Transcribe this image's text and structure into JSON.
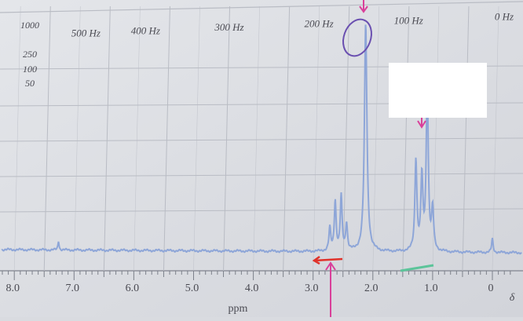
{
  "chart_data": {
    "type": "line",
    "title": "",
    "xlabel": "ppm",
    "ylabel": "",
    "x_axis": {
      "reversed": true,
      "range_ppm": [
        8.4,
        -0.3
      ],
      "ppm_ticks": [
        {
          "value": 8.0,
          "label": "8.0"
        },
        {
          "value": 7.0,
          "label": "7.0"
        },
        {
          "value": 6.0,
          "label": "6.0"
        },
        {
          "value": 5.0,
          "label": "5.0"
        },
        {
          "value": 4.0,
          "label": "4.0"
        },
        {
          "value": 3.0,
          "label": "3.0"
        },
        {
          "value": 2.0,
          "label": "2.0"
        },
        {
          "value": 1.0,
          "label": "1.0"
        },
        {
          "value": 0.0,
          "label": "0"
        }
      ],
      "delta_label": "δ",
      "hz_ticks": [
        {
          "ppm": 7.0,
          "label": "500 Hz"
        },
        {
          "ppm": 6.0,
          "label": "400 Hz"
        },
        {
          "ppm": 4.6,
          "label": "300 Hz"
        },
        {
          "ppm": 3.1,
          "label": "200 Hz"
        },
        {
          "ppm": 1.6,
          "label": "100 Hz"
        },
        {
          "ppm": 0.0,
          "label": "0 Hz"
        }
      ]
    },
    "sweep_widths": [
      "1000",
      "250",
      "100",
      "50"
    ],
    "grid": true,
    "baseline_intensity": 0.03,
    "peaks": [
      {
        "ppm": 7.26,
        "height": 0.04,
        "width": 0.012
      },
      {
        "ppm": 2.72,
        "height": 0.1,
        "width": 0.018
      },
      {
        "ppm": 2.63,
        "height": 0.22,
        "width": 0.018
      },
      {
        "ppm": 2.53,
        "height": 0.24,
        "width": 0.018
      },
      {
        "ppm": 2.44,
        "height": 0.12,
        "width": 0.018
      },
      {
        "ppm": 2.12,
        "height": 1.0,
        "width": 0.025
      },
      {
        "ppm": 1.28,
        "height": 0.4,
        "width": 0.02
      },
      {
        "ppm": 1.18,
        "height": 0.32,
        "width": 0.02
      },
      {
        "ppm": 1.09,
        "height": 0.75,
        "width": 0.02
      },
      {
        "ppm": 1.0,
        "height": 0.18,
        "width": 0.02
      },
      {
        "ppm": 0.0,
        "height": 0.06,
        "width": 0.015
      }
    ],
    "colors": {
      "spectrum": "#8ea6d8",
      "grid": "#b9bcc4",
      "annotation_purple": "#6a4fb0",
      "annotation_pink": "#d9409a",
      "annotation_red": "#e0322a",
      "annotation_green": "#5cc49a"
    }
  }
}
